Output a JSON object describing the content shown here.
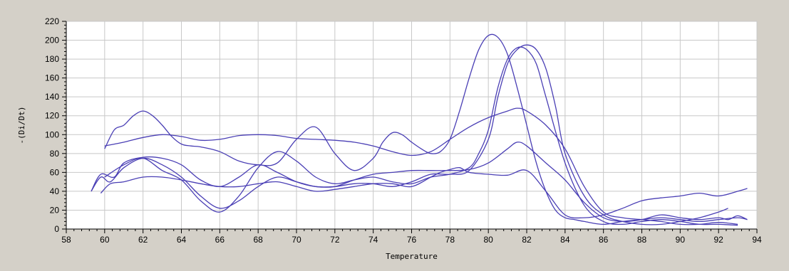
{
  "chart_data": {
    "type": "line",
    "title": "",
    "xlabel": "Temperature",
    "ylabel": "-(Di/Dt)",
    "xlim": [
      58,
      94
    ],
    "ylim": [
      0,
      220
    ],
    "x_ticks": [
      58,
      60,
      62,
      64,
      66,
      68,
      70,
      72,
      74,
      76,
      78,
      80,
      82,
      84,
      86,
      88,
      90,
      92,
      94
    ],
    "y_ticks": [
      0,
      20,
      40,
      60,
      80,
      100,
      120,
      140,
      160,
      180,
      200,
      220
    ],
    "grid": true,
    "legend": "none",
    "line_color": "#4a3fb5",
    "background_color": "#ffffff",
    "frame_color": "#d4d0c8",
    "series": [
      {
        "x": [
          60,
          60.5,
          61,
          61.5,
          62,
          62.5,
          63,
          63.5,
          64,
          64.5,
          65,
          66,
          67,
          68,
          69,
          70,
          71,
          72,
          73,
          74,
          74.5,
          75,
          75.5,
          76,
          76.5,
          77,
          77.5,
          78,
          78.5,
          79,
          79.5,
          80,
          80.5,
          81,
          81.5,
          82,
          82.5,
          83,
          83.5,
          84,
          84.5,
          85,
          86,
          87,
          88,
          89,
          90,
          91,
          92,
          93,
          93.5
        ],
        "y": [
          85,
          105,
          110,
          120,
          125,
          120,
          110,
          98,
          90,
          88,
          87,
          82,
          72,
          68,
          70,
          95,
          108,
          80,
          62,
          75,
          92,
          102,
          100,
          92,
          85,
          80,
          82,
          95,
          125,
          160,
          190,
          205,
          203,
          185,
          150,
          110,
          70,
          40,
          20,
          12,
          10,
          8,
          5,
          8,
          10,
          12,
          10,
          8,
          10,
          12,
          10
        ]
      },
      {
        "x": [
          60,
          61,
          62,
          63,
          64,
          65,
          66,
          67,
          68,
          69,
          70,
          71,
          72,
          73,
          74,
          75,
          76,
          77,
          78,
          79,
          80,
          81,
          81.5,
          82,
          83,
          84,
          85,
          86,
          87,
          88,
          89,
          90,
          91,
          92,
          93
        ],
        "y": [
          88,
          92,
          97,
          100,
          98,
          94,
          95,
          99,
          100,
          99,
          96,
          95,
          94,
          92,
          88,
          82,
          78,
          82,
          95,
          108,
          118,
          125,
          128,
          125,
          110,
          85,
          45,
          18,
          12,
          10,
          8,
          5,
          5,
          7,
          5
        ]
      },
      {
        "x": [
          60,
          61,
          62,
          63,
          64,
          65,
          66,
          67,
          68,
          69,
          70,
          71,
          72,
          73,
          74,
          75,
          76,
          77,
          78,
          79,
          79.5,
          80,
          80.5,
          81,
          81.5,
          82,
          82.5,
          83,
          84,
          85,
          86,
          87,
          88,
          89,
          90,
          91,
          92,
          93
        ],
        "y": [
          55,
          68,
          75,
          62,
          52,
          30,
          18,
          35,
          65,
          82,
          72,
          55,
          48,
          52,
          55,
          50,
          48,
          55,
          58,
          65,
          80,
          105,
          150,
          180,
          192,
          190,
          175,
          140,
          70,
          25,
          8,
          5,
          8,
          10,
          8,
          5,
          5,
          4
        ]
      },
      {
        "x": [
          59.3,
          59.8,
          60.3,
          61,
          62,
          63,
          64,
          65,
          66,
          67,
          68,
          69,
          70,
          71,
          72,
          73,
          74,
          75,
          76,
          77,
          78,
          79,
          80,
          80.5,
          81,
          81.5,
          82,
          82.5,
          83,
          83.5,
          84,
          85,
          86,
          87,
          88,
          89,
          90,
          91,
          92,
          92.5
        ],
        "y": [
          40,
          55,
          50,
          65,
          75,
          68,
          55,
          35,
          22,
          30,
          45,
          55,
          50,
          45,
          45,
          48,
          48,
          45,
          50,
          58,
          58,
          62,
          95,
          140,
          175,
          190,
          195,
          190,
          170,
          130,
          80,
          35,
          15,
          8,
          5,
          5,
          8,
          12,
          18,
          22
        ]
      },
      {
        "x": [
          59.3,
          59.8,
          60.5,
          61,
          62,
          63,
          64,
          65,
          66,
          67,
          68,
          69,
          70,
          71,
          72,
          73,
          74,
          75,
          76,
          77,
          78,
          79,
          80,
          81,
          81.5,
          82,
          83,
          84,
          85,
          86,
          87,
          88,
          89,
          90,
          91,
          92,
          92.5,
          93,
          93.5
        ],
        "y": [
          40,
          58,
          55,
          70,
          76,
          75,
          68,
          52,
          45,
          55,
          68,
          60,
          50,
          45,
          45,
          52,
          58,
          60,
          62,
          62,
          62,
          63,
          70,
          85,
          92,
          88,
          70,
          52,
          28,
          12,
          8,
          10,
          15,
          12,
          10,
          12,
          10,
          14,
          10
        ]
      },
      {
        "x": [
          59.8,
          60.3,
          61,
          62,
          63,
          64,
          65,
          66,
          67,
          68,
          69,
          70,
          71,
          72,
          73,
          74,
          75,
          76,
          77,
          77.5,
          78,
          78.5,
          79,
          80,
          81,
          82,
          83,
          84,
          85,
          86,
          87,
          88,
          89,
          90,
          91,
          92,
          93,
          93.5
        ],
        "y": [
          38,
          48,
          50,
          55,
          55,
          52,
          48,
          45,
          45,
          48,
          50,
          45,
          40,
          42,
          45,
          48,
          48,
          45,
          55,
          60,
          63,
          65,
          60,
          58,
          57,
          62,
          40,
          15,
          12,
          15,
          22,
          30,
          33,
          35,
          38,
          35,
          40,
          43
        ]
      }
    ]
  }
}
